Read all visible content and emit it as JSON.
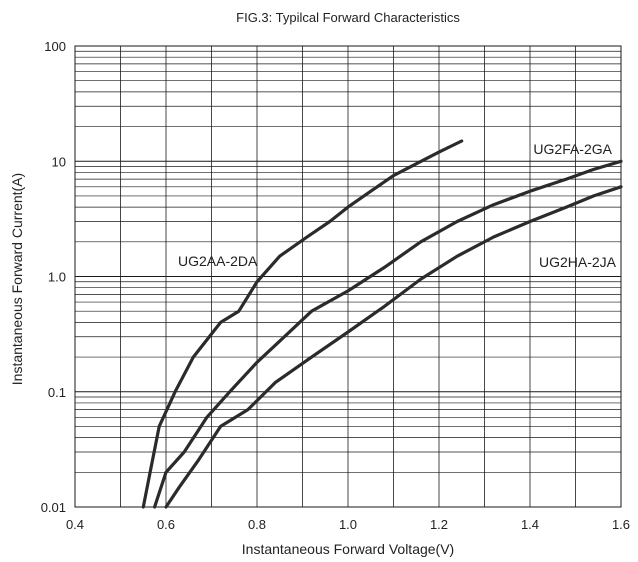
{
  "chart_data": {
    "type": "line",
    "title": "FIG.3: Typilcal Forward Characteristics",
    "xlabel": "Instantaneous Forward Voltage(V)",
    "ylabel": "Instantaneous Forward Current(A)",
    "xlim": [
      0.4,
      1.6
    ],
    "ylim": [
      0.01,
      100
    ],
    "yscale": "log",
    "x_ticks": [
      "0.4",
      "0.6",
      "0.8",
      "1.0",
      "1.2",
      "1.4",
      "1.6"
    ],
    "x_tick_values": [
      0.4,
      0.6,
      0.8,
      1.0,
      1.2,
      1.4,
      1.6
    ],
    "y_ticks": [
      "0.01",
      "0.1",
      "1.0",
      "10",
      "100"
    ],
    "y_tick_values": [
      0.01,
      0.1,
      1,
      10,
      100
    ],
    "grid": true,
    "colors": {
      "line": "#2b2b2b",
      "grid": "#1a1a1a"
    },
    "series": [
      {
        "name": "UG2AA-2DA",
        "x": [
          0.55,
          0.565,
          0.585,
          0.62,
          0.66,
          0.72,
          0.76,
          0.8,
          0.85,
          0.91,
          0.96,
          1.0,
          1.05,
          1.1,
          1.15,
          1.2,
          1.25
        ],
        "y": [
          0.01,
          0.02,
          0.05,
          0.1,
          0.2,
          0.4,
          0.5,
          0.9,
          1.5,
          2.2,
          3.0,
          4.0,
          5.5,
          7.5,
          9.5,
          12,
          15
        ]
      },
      {
        "name": "UG2FA-2GA",
        "x": [
          0.575,
          0.6,
          0.64,
          0.69,
          0.74,
          0.8,
          0.86,
          0.92,
          1.0,
          1.08,
          1.16,
          1.24,
          1.32,
          1.4,
          1.48,
          1.54,
          1.6
        ],
        "y": [
          0.01,
          0.02,
          0.03,
          0.06,
          0.1,
          0.18,
          0.3,
          0.5,
          0.75,
          1.2,
          2.0,
          3.0,
          4.2,
          5.5,
          7.0,
          8.5,
          10
        ]
      },
      {
        "name": "UG2HA-2JA",
        "x": [
          0.6,
          0.63,
          0.67,
          0.72,
          0.78,
          0.84,
          0.92,
          1.0,
          1.08,
          1.16,
          1.24,
          1.32,
          1.4,
          1.48,
          1.54,
          1.6
        ],
        "y": [
          0.01,
          0.015,
          0.025,
          0.05,
          0.07,
          0.12,
          0.2,
          0.33,
          0.55,
          0.95,
          1.5,
          2.2,
          3.0,
          4.0,
          5.0,
          6.0
        ]
      }
    ]
  }
}
